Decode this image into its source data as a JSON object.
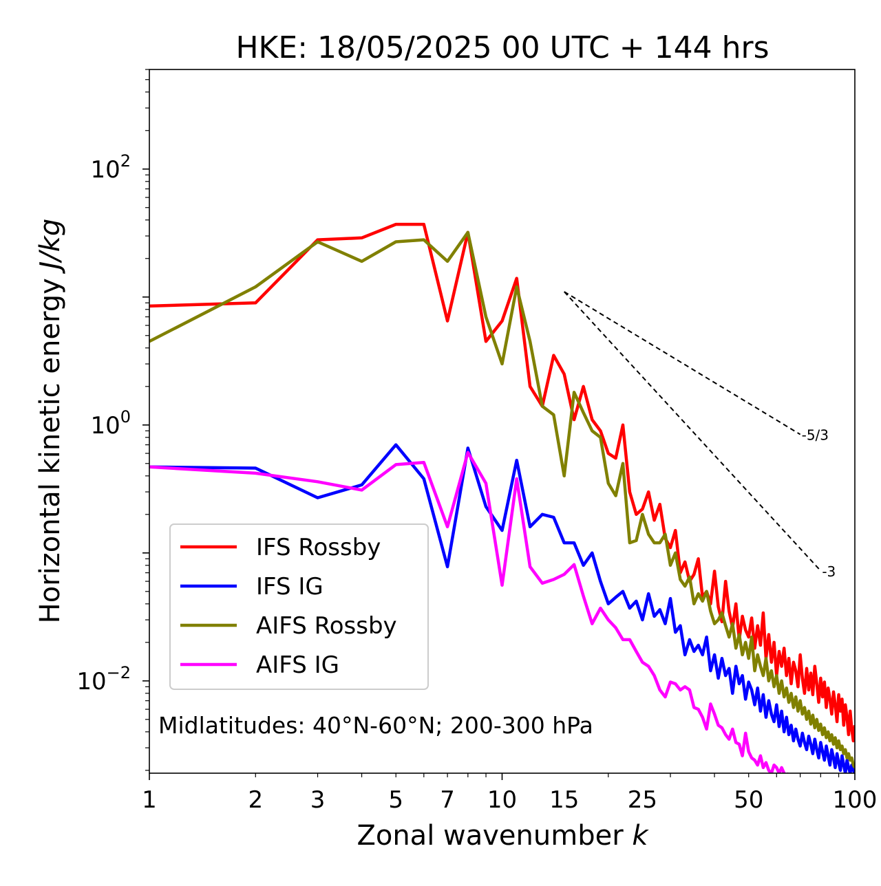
{
  "chart_data": {
    "type": "line",
    "title": "HKE: 18/05/2025 00 UTC + 144 hrs",
    "xlabel": "Zonal wavenumber",
    "xlabel_symbol": "k",
    "ylabel": "Horizontal kinetic energy",
    "ylabel_unit": "J/kg",
    "xscale": "log",
    "yscale": "log",
    "xlim": [
      1,
      100
    ],
    "ylim": [
      0.0019,
      600
    ],
    "x_ticks": [
      1,
      2,
      3,
      5,
      7,
      10,
      15,
      25,
      50,
      100
    ],
    "x_tick_labels": [
      "1",
      "2",
      "3",
      "5",
      "7",
      "10",
      "15",
      "25",
      "50",
      "100"
    ],
    "y_ticks": [
      {
        "value": 0.01,
        "base": "10",
        "exp": "−2"
      },
      {
        "value": 1,
        "base": "10",
        "exp": "0"
      },
      {
        "value": 100,
        "base": "10",
        "exp": "2"
      }
    ],
    "grid": false,
    "legend_position": "lower-left",
    "annotation": "Midlatitudes: 40°N-60°N; 200-300 hPa",
    "reference_lines": [
      {
        "label": "-5/3",
        "slope": -1.6667,
        "x_start": 15,
        "y_start": 11.0,
        "x_end": 70
      },
      {
        "label": "-3",
        "slope": -3,
        "x_start": 15,
        "y_start": 11.0,
        "x_end": 80
      }
    ],
    "series": [
      {
        "name": "IFS Rossby",
        "color": "#ff0000",
        "x": [
          1,
          2,
          3,
          4,
          5,
          6,
          7,
          8,
          9,
          10,
          11,
          12,
          13,
          14,
          15,
          16,
          17,
          18,
          19,
          20,
          21,
          22,
          23,
          24,
          25,
          26,
          27,
          28,
          29,
          30,
          31,
          32,
          33,
          34,
          35,
          36,
          37,
          38,
          39,
          40,
          41,
          42,
          43,
          44,
          45,
          46,
          47,
          48,
          49,
          50,
          51,
          52,
          53,
          54,
          55,
          56,
          57,
          58,
          59,
          60,
          61,
          62,
          63,
          64,
          65,
          66,
          67,
          68,
          69,
          70,
          71,
          72,
          73,
          74,
          75,
          76,
          77,
          78,
          79,
          80,
          81,
          82,
          83,
          84,
          85,
          86,
          87,
          88,
          89,
          90,
          91,
          92,
          93,
          94,
          95,
          96,
          97,
          98,
          99,
          100
        ],
        "y": [
          8.5,
          9.0,
          28,
          29,
          37,
          37,
          6.5,
          32,
          4.5,
          6.5,
          14,
          2.0,
          1.4,
          3.5,
          2.5,
          1.1,
          2.0,
          1.1,
          0.9,
          0.6,
          0.55,
          1.0,
          0.3,
          0.2,
          0.22,
          0.3,
          0.18,
          0.24,
          0.13,
          0.11,
          0.15,
          0.07,
          0.085,
          0.06,
          0.068,
          0.09,
          0.045,
          0.05,
          0.04,
          0.072,
          0.038,
          0.029,
          0.06,
          0.035,
          0.026,
          0.04,
          0.021,
          0.032,
          0.025,
          0.022,
          0.031,
          0.018,
          0.027,
          0.019,
          0.034,
          0.015,
          0.023,
          0.014,
          0.02,
          0.011,
          0.017,
          0.013,
          0.018,
          0.011,
          0.015,
          0.0095,
          0.014,
          0.012,
          0.009,
          0.016,
          0.0105,
          0.008,
          0.0125,
          0.0085,
          0.0115,
          0.0078,
          0.013,
          0.0095,
          0.0068,
          0.0105,
          0.0075,
          0.0098,
          0.0062,
          0.0088,
          0.0072,
          0.0055,
          0.0082,
          0.0065,
          0.0048,
          0.0078,
          0.0058,
          0.0072,
          0.0045,
          0.0065,
          0.0052,
          0.0038,
          0.0058,
          0.0042,
          0.0034,
          0.0045
        ]
      },
      {
        "name": "IFS IG",
        "color": "#0000ff",
        "x": [
          1,
          2,
          3,
          4,
          5,
          6,
          7,
          8,
          9,
          10,
          11,
          12,
          13,
          14,
          15,
          16,
          17,
          18,
          19,
          20,
          21,
          22,
          23,
          24,
          25,
          26,
          27,
          28,
          29,
          30,
          31,
          32,
          33,
          34,
          35,
          36,
          37,
          38,
          39,
          40,
          41,
          42,
          43,
          44,
          45,
          46,
          47,
          48,
          49,
          50,
          51,
          52,
          53,
          54,
          55,
          56,
          57,
          58,
          59,
          60,
          61,
          62,
          63,
          64,
          65,
          66,
          67,
          68,
          69,
          70,
          71,
          72,
          73,
          74,
          75,
          76,
          77,
          78,
          79,
          80,
          81,
          82,
          83,
          84,
          85,
          86,
          87,
          88,
          89,
          90,
          91,
          92,
          93,
          94,
          95,
          96,
          97,
          98,
          99,
          100
        ],
        "y": [
          0.47,
          0.46,
          0.27,
          0.34,
          0.7,
          0.38,
          0.078,
          0.66,
          0.23,
          0.15,
          0.53,
          0.16,
          0.2,
          0.19,
          0.12,
          0.12,
          0.08,
          0.1,
          0.06,
          0.04,
          0.045,
          0.05,
          0.037,
          0.042,
          0.03,
          0.048,
          0.032,
          0.036,
          0.028,
          0.044,
          0.024,
          0.027,
          0.016,
          0.021,
          0.017,
          0.019,
          0.016,
          0.022,
          0.012,
          0.016,
          0.0105,
          0.015,
          0.011,
          0.0125,
          0.008,
          0.013,
          0.0095,
          0.011,
          0.0072,
          0.0098,
          0.0085,
          0.0065,
          0.0088,
          0.0058,
          0.0078,
          0.0052,
          0.007,
          0.0055,
          0.0048,
          0.0065,
          0.0044,
          0.0058,
          0.004,
          0.0052,
          0.0038,
          0.0045,
          0.0034,
          0.0042,
          0.0035,
          0.0031,
          0.0039,
          0.0033,
          0.0029,
          0.0037,
          0.0032,
          0.0027,
          0.0035,
          0.0029,
          0.0025,
          0.0033,
          0.0028,
          0.0024,
          0.0031,
          0.0026,
          0.0022,
          0.0029,
          0.0025,
          0.0021,
          0.0027,
          0.0023,
          0.002,
          0.0026,
          0.0022,
          0.0019,
          0.0024,
          0.0021,
          0.0019,
          0.0022,
          0.002,
          0.0019
        ]
      },
      {
        "name": "AIFS Rossby",
        "color": "#808000",
        "x": [
          1,
          2,
          3,
          4,
          5,
          6,
          7,
          8,
          9,
          10,
          11,
          12,
          13,
          14,
          15,
          16,
          17,
          18,
          19,
          20,
          21,
          22,
          23,
          24,
          25,
          26,
          27,
          28,
          29,
          30,
          31,
          32,
          33,
          34,
          35,
          36,
          37,
          38,
          39,
          40,
          41,
          42,
          43,
          44,
          45,
          46,
          47,
          48,
          49,
          50,
          51,
          52,
          53,
          54,
          55,
          56,
          57,
          58,
          59,
          60,
          61,
          62,
          63,
          64,
          65,
          66,
          67,
          68,
          69,
          70,
          71,
          72,
          73,
          74,
          75,
          76,
          77,
          78,
          79,
          80,
          81,
          82,
          83,
          84,
          85,
          86,
          87,
          88,
          89,
          90,
          91,
          92,
          93,
          94,
          95,
          96,
          97,
          98,
          99,
          100
        ],
        "y": [
          4.5,
          12,
          27,
          19,
          27,
          28,
          19,
          32,
          7.0,
          3.0,
          12,
          4.5,
          1.4,
          1.2,
          0.4,
          1.8,
          1.25,
          0.9,
          0.8,
          0.35,
          0.28,
          0.5,
          0.12,
          0.125,
          0.2,
          0.14,
          0.12,
          0.12,
          0.14,
          0.08,
          0.1,
          0.062,
          0.055,
          0.065,
          0.04,
          0.048,
          0.042,
          0.05,
          0.035,
          0.028,
          0.03,
          0.034,
          0.027,
          0.022,
          0.028,
          0.018,
          0.023,
          0.016,
          0.02,
          0.015,
          0.022,
          0.012,
          0.016,
          0.013,
          0.011,
          0.015,
          0.01,
          0.012,
          0.009,
          0.011,
          0.008,
          0.01,
          0.0075,
          0.0088,
          0.0068,
          0.008,
          0.0062,
          0.0075,
          0.0058,
          0.007,
          0.0055,
          0.0062,
          0.005,
          0.0058,
          0.0046,
          0.0054,
          0.0043,
          0.005,
          0.0041,
          0.0046,
          0.0038,
          0.0043,
          0.0036,
          0.004,
          0.0034,
          0.0038,
          0.0032,
          0.0036,
          0.003,
          0.0034,
          0.0029,
          0.0031,
          0.0027,
          0.0029,
          0.0025,
          0.0027,
          0.0024,
          0.0025,
          0.0022,
          0.0021
        ]
      },
      {
        "name": "AIFS IG",
        "color": "#ff00ff",
        "x": [
          1,
          2,
          3,
          4,
          5,
          6,
          7,
          8,
          9,
          10,
          11,
          12,
          13,
          14,
          15,
          16,
          17,
          18,
          19,
          20,
          21,
          22,
          23,
          24,
          25,
          26,
          27,
          28,
          29,
          30,
          31,
          32,
          33,
          34,
          35,
          36,
          37,
          38,
          39,
          40,
          41,
          42,
          43,
          44,
          45,
          46,
          47,
          48,
          49,
          50,
          51,
          52,
          53,
          54,
          55,
          56,
          57,
          58,
          59,
          60,
          61,
          62,
          63,
          64,
          65
        ],
        "y": [
          0.47,
          0.42,
          0.36,
          0.31,
          0.49,
          0.51,
          0.16,
          0.61,
          0.35,
          0.056,
          0.38,
          0.078,
          0.058,
          0.062,
          0.068,
          0.081,
          0.046,
          0.028,
          0.037,
          0.03,
          0.026,
          0.021,
          0.021,
          0.017,
          0.014,
          0.013,
          0.011,
          0.0085,
          0.0075,
          0.0098,
          0.0095,
          0.0085,
          0.009,
          0.0085,
          0.0062,
          0.006,
          0.0052,
          0.0042,
          0.0066,
          0.0055,
          0.0045,
          0.0043,
          0.0038,
          0.0035,
          0.0042,
          0.0033,
          0.0032,
          0.0026,
          0.0039,
          0.0028,
          0.0025,
          0.0024,
          0.0022,
          0.0026,
          0.0021,
          0.0023,
          0.002,
          0.0019,
          0.0022,
          0.0021,
          0.0019,
          0.0021,
          0.0019,
          0.0018,
          0.0019
        ]
      }
    ]
  }
}
